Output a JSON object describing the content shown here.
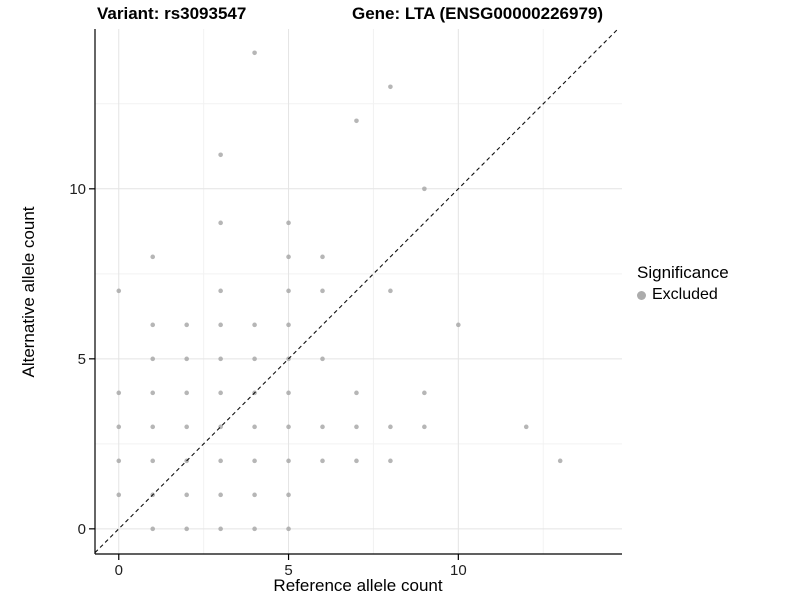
{
  "header": {
    "title_left": "Variant: rs3093547",
    "title_right": "Gene: LTA (ENSG00000226979)"
  },
  "chart_data": {
    "type": "scatter",
    "xlabel": "Reference allele count",
    "ylabel": "Alternative allele count",
    "xlim": [
      -0.7,
      14.82
    ],
    "ylim": [
      -0.74,
      14.7
    ],
    "x_ticks": [
      0,
      5,
      10
    ],
    "y_ticks": [
      0,
      5,
      10
    ],
    "minor_ticks": [
      2.5,
      7.5,
      12.5
    ],
    "grid": true,
    "identity_line": {
      "slope": 1,
      "intercept": 0,
      "style": "dashed"
    },
    "point_radius": 2.3,
    "point_opacity": 0.8,
    "colors": {
      "point": "#a4a4a4",
      "major_grid": "#e4e4e4",
      "minor_grid": "#f2f2f2",
      "axis": "#000000",
      "identity": "#111111",
      "tick_label": "#1f1f1f"
    },
    "series": [
      {
        "name": "Excluded",
        "points": [
          [
            0,
            1
          ],
          [
            0,
            2
          ],
          [
            0,
            3
          ],
          [
            0,
            4
          ],
          [
            0,
            7
          ],
          [
            1,
            0
          ],
          [
            1,
            1
          ],
          [
            1,
            2
          ],
          [
            1,
            3
          ],
          [
            1,
            4
          ],
          [
            1,
            5
          ],
          [
            1,
            6
          ],
          [
            1,
            8
          ],
          [
            2,
            0
          ],
          [
            2,
            1
          ],
          [
            2,
            2
          ],
          [
            2,
            3
          ],
          [
            2,
            4
          ],
          [
            2,
            5
          ],
          [
            2,
            6
          ],
          [
            3,
            0
          ],
          [
            3,
            1
          ],
          [
            3,
            2
          ],
          [
            3,
            3
          ],
          [
            3,
            4
          ],
          [
            3,
            5
          ],
          [
            3,
            6
          ],
          [
            3,
            7
          ],
          [
            3,
            9
          ],
          [
            3,
            11
          ],
          [
            4,
            0
          ],
          [
            4,
            1
          ],
          [
            4,
            2
          ],
          [
            4,
            3
          ],
          [
            4,
            4
          ],
          [
            4,
            5
          ],
          [
            4,
            6
          ],
          [
            4,
            14
          ],
          [
            5,
            0
          ],
          [
            5,
            1
          ],
          [
            5,
            2
          ],
          [
            5,
            3
          ],
          [
            5,
            4
          ],
          [
            5,
            5
          ],
          [
            5,
            6
          ],
          [
            5,
            7
          ],
          [
            5,
            8
          ],
          [
            5,
            9
          ],
          [
            6,
            2
          ],
          [
            6,
            3
          ],
          [
            6,
            5
          ],
          [
            6,
            7
          ],
          [
            6,
            8
          ],
          [
            7,
            2
          ],
          [
            7,
            3
          ],
          [
            7,
            4
          ],
          [
            7,
            12
          ],
          [
            8,
            2
          ],
          [
            8,
            3
          ],
          [
            8,
            7
          ],
          [
            8,
            13
          ],
          [
            9,
            3
          ],
          [
            9,
            4
          ],
          [
            9,
            10
          ],
          [
            10,
            6
          ],
          [
            12,
            3
          ],
          [
            13,
            2
          ]
        ]
      }
    ],
    "legend": {
      "title": "Significance",
      "position": "right",
      "items": [
        {
          "label": "Excluded",
          "color": "#acacac"
        }
      ]
    }
  }
}
